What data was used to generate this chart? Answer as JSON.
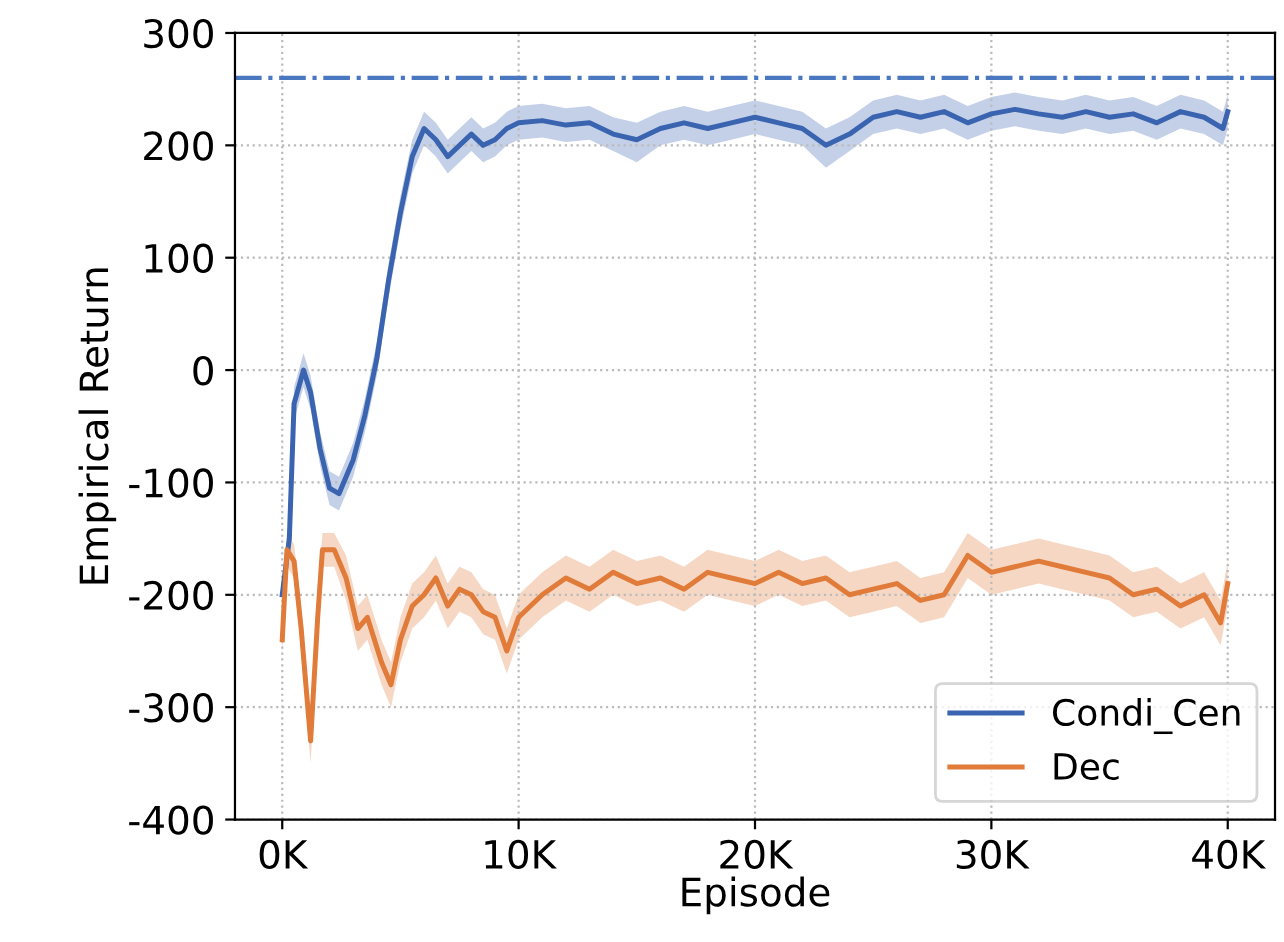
{
  "chart_data": {
    "type": "line",
    "xlabel": "Episode",
    "ylabel": "Empirical Return",
    "xlim": [
      -2000,
      42000
    ],
    "ylim": [
      -400,
      300
    ],
    "xticks": [
      {
        "value": 0,
        "label": "0K"
      },
      {
        "value": 10000,
        "label": "10K"
      },
      {
        "value": 20000,
        "label": "20K"
      },
      {
        "value": 30000,
        "label": "30K"
      },
      {
        "value": 40000,
        "label": "40K"
      }
    ],
    "yticks": [
      -400,
      -300,
      -200,
      -100,
      0,
      100,
      200,
      300
    ],
    "grid": true,
    "legend": "bottom right",
    "line_style": "solid",
    "marker": "none",
    "ref_lines": [
      {
        "axis": "y",
        "value": 260,
        "color": "#4a78c0",
        "line_style": "dashdot"
      }
    ],
    "series": [
      {
        "name": "Condi_Cen",
        "color": "#3a64b0",
        "x": [
          0,
          300,
          500,
          900,
          1200,
          1600,
          2000,
          2400,
          3000,
          3500,
          4000,
          4500,
          5000,
          5500,
          6000,
          6500,
          7000,
          7500,
          8000,
          8500,
          9000,
          9500,
          10000,
          11000,
          12000,
          13000,
          14000,
          15000,
          16000,
          17000,
          18000,
          19000,
          20000,
          21000,
          22000,
          23000,
          24000,
          25000,
          26000,
          27000,
          28000,
          29000,
          30000,
          31000,
          32000,
          33000,
          34000,
          35000,
          36000,
          37000,
          38000,
          39000,
          39800,
          40000
        ],
        "values": [
          -200,
          -150,
          -30,
          0,
          -20,
          -70,
          -105,
          -110,
          -80,
          -40,
          10,
          80,
          140,
          190,
          215,
          205,
          190,
          200,
          210,
          200,
          205,
          215,
          220,
          222,
          218,
          220,
          210,
          205,
          215,
          220,
          215,
          220,
          225,
          220,
          215,
          200,
          210,
          225,
          230,
          225,
          230,
          220,
          228,
          232,
          228,
          225,
          230,
          225,
          228,
          220,
          230,
          225,
          215,
          230
        ],
        "lower": [
          -215,
          -165,
          -45,
          -15,
          -35,
          -85,
          -120,
          -125,
          -95,
          -55,
          -5,
          65,
          125,
          175,
          200,
          190,
          175,
          185,
          195,
          185,
          190,
          200,
          205,
          207,
          203,
          205,
          195,
          185,
          200,
          205,
          200,
          205,
          210,
          205,
          200,
          180,
          195,
          210,
          215,
          210,
          215,
          205,
          213,
          217,
          213,
          210,
          215,
          210,
          213,
          205,
          215,
          210,
          200,
          215
        ],
        "upper": [
          -185,
          -135,
          -15,
          15,
          -5,
          -55,
          -90,
          -95,
          -65,
          -25,
          25,
          95,
          155,
          205,
          230,
          220,
          205,
          215,
          225,
          215,
          220,
          230,
          235,
          237,
          233,
          235,
          225,
          220,
          230,
          235,
          230,
          235,
          240,
          235,
          230,
          215,
          225,
          240,
          245,
          240,
          245,
          235,
          243,
          247,
          243,
          240,
          245,
          240,
          243,
          235,
          245,
          240,
          230,
          245
        ]
      },
      {
        "name": "Dec",
        "color": "#e07b39",
        "x": [
          0,
          200,
          500,
          800,
          1200,
          1500,
          1700,
          2200,
          2700,
          3200,
          3600,
          4200,
          4600,
          5000,
          5500,
          6000,
          6500,
          7000,
          7500,
          8000,
          8500,
          9000,
          9500,
          10000,
          11000,
          12000,
          13000,
          14000,
          15000,
          16000,
          17000,
          18000,
          19000,
          20000,
          21000,
          22000,
          23000,
          24000,
          25000,
          26000,
          27000,
          28000,
          29000,
          30000,
          31000,
          32000,
          33000,
          34000,
          35000,
          36000,
          37000,
          38000,
          39000,
          39700,
          40000
        ],
        "values": [
          -240,
          -160,
          -170,
          -230,
          -330,
          -220,
          -160,
          -160,
          -185,
          -230,
          -220,
          -260,
          -280,
          -240,
          -210,
          -200,
          -185,
          -210,
          -195,
          -200,
          -215,
          -220,
          -250,
          -220,
          -200,
          -185,
          -195,
          -180,
          -190,
          -185,
          -195,
          -180,
          -185,
          -190,
          -180,
          -190,
          -185,
          -200,
          -195,
          -190,
          -205,
          -200,
          -165,
          -180,
          -175,
          -170,
          -175,
          -180,
          -185,
          -200,
          -195,
          -210,
          -200,
          -225,
          -190
        ],
        "lower": [
          -255,
          -175,
          -185,
          -250,
          -350,
          -240,
          -175,
          -175,
          -205,
          -250,
          -240,
          -280,
          -300,
          -260,
          -230,
          -220,
          -205,
          -230,
          -215,
          -220,
          -235,
          -240,
          -270,
          -240,
          -220,
          -205,
          -215,
          -200,
          -210,
          -205,
          -215,
          -200,
          -205,
          -210,
          -200,
          -210,
          -205,
          -220,
          -215,
          -210,
          -225,
          -220,
          -185,
          -200,
          -195,
          -190,
          -195,
          -200,
          -205,
          -220,
          -215,
          -230,
          -220,
          -245,
          -210
        ],
        "upper": [
          -225,
          -145,
          -155,
          -210,
          -310,
          -200,
          -145,
          -145,
          -165,
          -210,
          -200,
          -240,
          -260,
          -220,
          -190,
          -180,
          -165,
          -190,
          -175,
          -180,
          -195,
          -200,
          -230,
          -200,
          -180,
          -165,
          -175,
          -160,
          -170,
          -165,
          -175,
          -160,
          -165,
          -170,
          -160,
          -170,
          -165,
          -180,
          -175,
          -170,
          -185,
          -180,
          -145,
          -160,
          -155,
          -150,
          -155,
          -160,
          -165,
          -180,
          -175,
          -190,
          -180,
          -205,
          -170
        ]
      }
    ]
  }
}
